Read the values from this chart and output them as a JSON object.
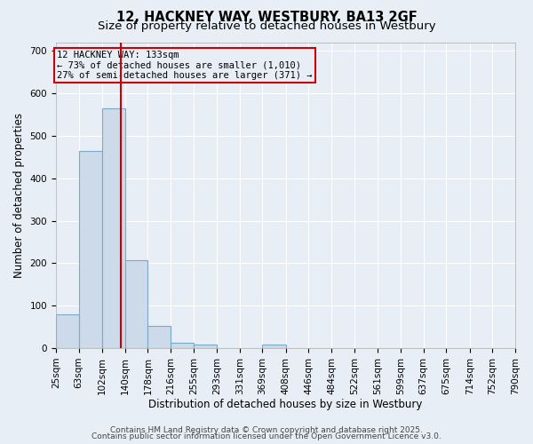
{
  "title_line1": "12, HACKNEY WAY, WESTBURY, BA13 2GF",
  "title_line2": "Size of property relative to detached houses in Westbury",
  "xlabel": "Distribution of detached houses by size in Westbury",
  "ylabel": "Number of detached properties",
  "bin_labels": [
    "25sqm",
    "63sqm",
    "102sqm",
    "140sqm",
    "178sqm",
    "216sqm",
    "255sqm",
    "293sqm",
    "331sqm",
    "369sqm",
    "408sqm",
    "446sqm",
    "484sqm",
    "522sqm",
    "561sqm",
    "599sqm",
    "637sqm",
    "675sqm",
    "714sqm",
    "752sqm",
    "790sqm"
  ],
  "bin_edges": [
    25,
    63,
    102,
    140,
    178,
    216,
    255,
    293,
    331,
    369,
    408,
    446,
    484,
    522,
    561,
    599,
    637,
    675,
    714,
    752,
    790
  ],
  "bar_heights": [
    80,
    465,
    565,
    207,
    53,
    13,
    8,
    0,
    0,
    8,
    0,
    0,
    0,
    0,
    0,
    0,
    0,
    0,
    0,
    0
  ],
  "bar_color": "#ccdaea",
  "bar_edgecolor": "#7aaac8",
  "bar_linewidth": 0.8,
  "red_line_x": 133,
  "red_line_color": "#cc0000",
  "annotation_line1": "12 HACKNEY WAY: 133sqm",
  "annotation_line2": "← 73% of detached houses are smaller (1,010)",
  "annotation_line3": "27% of semi-detached houses are larger (371) →",
  "ylim": [
    0,
    720
  ],
  "yticks": [
    0,
    100,
    200,
    300,
    400,
    500,
    600,
    700
  ],
  "background_color": "#e8eef5",
  "grid_color": "#ffffff",
  "footer_line1": "Contains HM Land Registry data © Crown copyright and database right 2025.",
  "footer_line2": "Contains public sector information licensed under the Open Government Licence v3.0.",
  "title_fontsize": 10.5,
  "subtitle_fontsize": 9.5,
  "axis_label_fontsize": 8.5,
  "tick_fontsize": 7.5,
  "annotation_fontsize": 7.5,
  "footer_fontsize": 6.5
}
